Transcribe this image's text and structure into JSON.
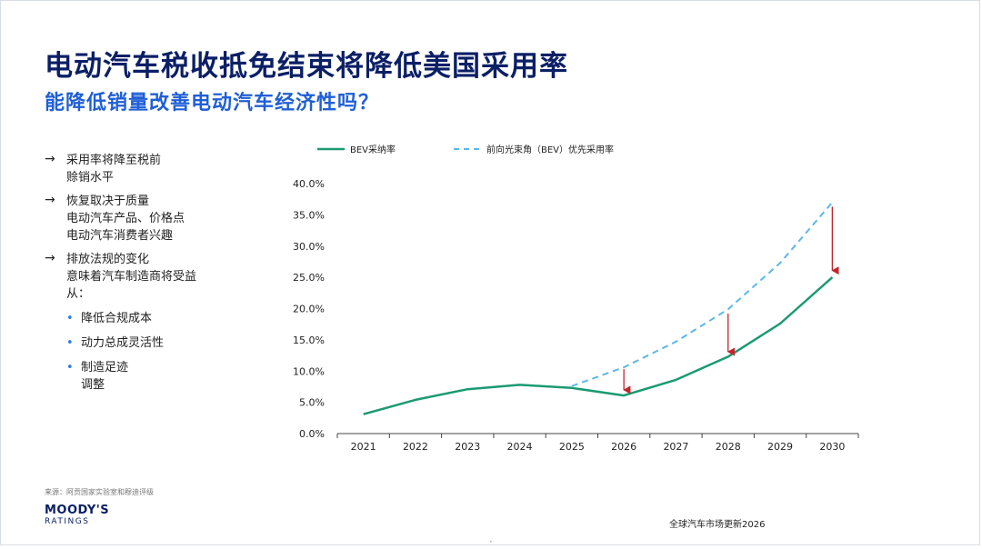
{
  "title": "电动汽车税收抵免结束将降低美国采用率",
  "subtitle": "能降低销量改善电动汽车经济性吗？",
  "bullets": [
    {
      "lines": [
        "采用率将降至税前",
        "赊销水平"
      ]
    },
    {
      "lines": [
        "恢复取决于质量",
        "电动汽车产品、价格点",
        "电动汽车消费者兴趣"
      ]
    },
    {
      "lines": [
        "排放法规的变化",
        "意味着汽车制造商将受益",
        "从："
      ],
      "sub": [
        {
          "lines": [
            "降低合规成本"
          ]
        },
        {
          "lines": [
            "动力总成灵活性"
          ]
        },
        {
          "lines": [
            "制造足迹",
            "调整"
          ]
        }
      ]
    }
  ],
  "arrow_glyph": "→",
  "bullet_glyph": "•",
  "source": "来源：阿贡国家实验室和穆迪评级",
  "logo": {
    "line1": "MOODY'S",
    "line2": "RATINGS"
  },
  "footer": "全球汽车市场更新2026",
  "page_mark": "•",
  "colors": {
    "title": "#0b1f66",
    "subtitle": "#1f5fd6",
    "bev": "#1a9a72",
    "preferred": "#5bb8e8",
    "arrow": "#c0262d"
  },
  "chart_data": {
    "type": "line",
    "x": [
      2021,
      2022,
      2023,
      2024,
      2025,
      2026,
      2027,
      2028,
      2029,
      2030
    ],
    "ylim": [
      0,
      40
    ],
    "yticks": [
      0,
      5,
      10,
      15,
      20,
      25,
      30,
      35,
      40
    ],
    "ytick_labels": [
      "0.0%",
      "5.0%",
      "10.0%",
      "15.0%",
      "20.0%",
      "25.0%",
      "30.0%",
      "35.0%",
      "40.0%"
    ],
    "series": [
      {
        "name": "BEV采纳率",
        "style": "solid",
        "x": [
          2021,
          2022,
          2023,
          2024,
          2025,
          2026,
          2027,
          2028,
          2029,
          2030
        ],
        "values": [
          3.1,
          5.4,
          7.1,
          7.8,
          7.3,
          6.1,
          8.6,
          12.3,
          17.6,
          25.0
        ]
      },
      {
        "name": "前向光束角（BEV）优先采用率",
        "style": "dashed",
        "x": [
          2025,
          2026,
          2027,
          2028,
          2029,
          2030
        ],
        "values": [
          7.6,
          10.6,
          14.7,
          19.9,
          27.3,
          37.0
        ]
      }
    ],
    "annotations": [
      {
        "type": "arrow",
        "x": 2026,
        "from": 10.3,
        "to": 6.4
      },
      {
        "type": "arrow",
        "x": 2028,
        "from": 19.2,
        "to": 12.5
      },
      {
        "type": "arrow",
        "x": 2030,
        "from": 36.3,
        "to": 25.5
      }
    ],
    "legend": "top",
    "grid": false
  }
}
